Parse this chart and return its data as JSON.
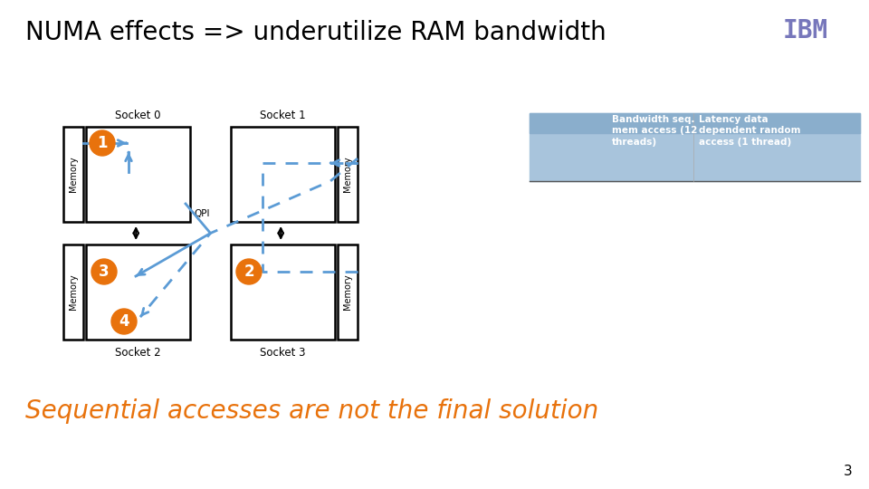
{
  "title": "NUMA effects => underutilize RAM bandwidth",
  "subtitle": "Sequential accesses are not the final solution",
  "bg_color": "#ffffff",
  "title_color": "#000000",
  "subtitle_color": "#e8720c",
  "table_bg": "#a8c4dc",
  "table_header_bg": "#8aaecc",
  "table_col1": "Bandwidth seq.\nmem access (12\nthreads)",
  "table_col2": "Latency data\ndependent random\naccess (1 thread)",
  "arrow_color": "#5b9bd5",
  "circle_color": "#e8720c",
  "ibm_color": "#7777bb",
  "page_number": "3"
}
